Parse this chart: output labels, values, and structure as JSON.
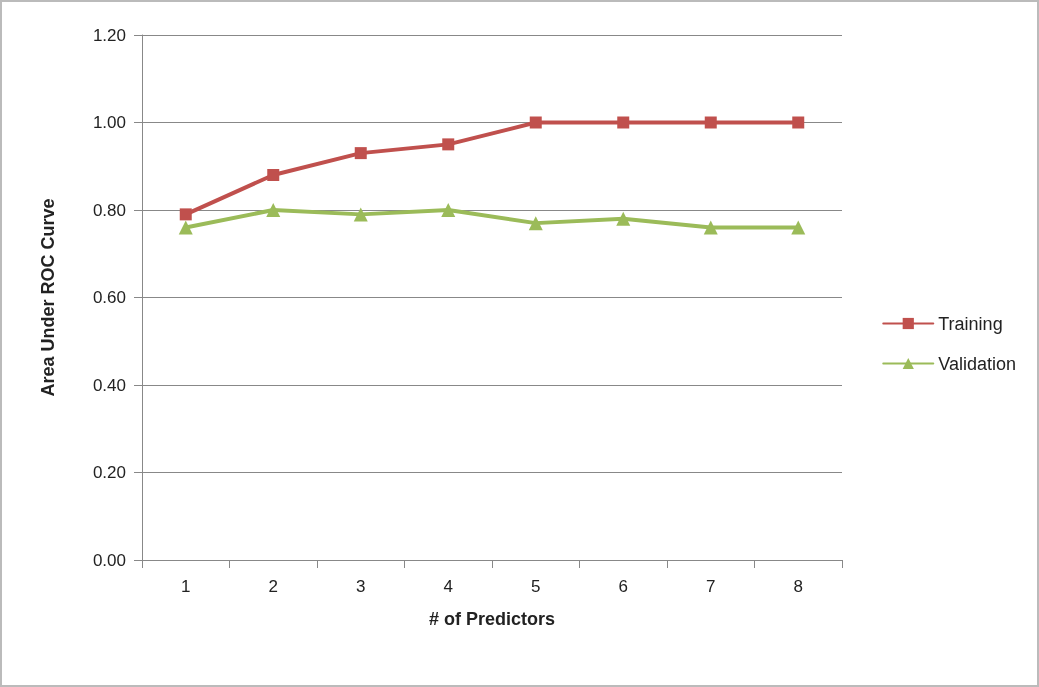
{
  "chart_data": {
    "type": "line",
    "xlabel": "# of Predictors",
    "ylabel": "Area Under ROC Curve",
    "categories": [
      "1",
      "2",
      "3",
      "4",
      "5",
      "6",
      "7",
      "8"
    ],
    "series": [
      {
        "name": "Training",
        "color": "#c0504d",
        "marker": "square",
        "values": [
          0.79,
          0.88,
          0.93,
          0.95,
          1.0,
          1.0,
          1.0,
          1.0
        ]
      },
      {
        "name": "Validation",
        "color": "#9bbb59",
        "marker": "triangle",
        "values": [
          0.76,
          0.8,
          0.79,
          0.8,
          0.77,
          0.78,
          0.76,
          0.76
        ]
      }
    ],
    "ylim": [
      0,
      1.2
    ],
    "yticks": [
      {
        "value": 0,
        "label": "0.00"
      },
      {
        "value": 0.2,
        "label": "0.20"
      },
      {
        "value": 0.4,
        "label": "0.40"
      },
      {
        "value": 0.6,
        "label": "0.60"
      },
      {
        "value": 0.8,
        "label": "0.80"
      },
      {
        "value": 1.0,
        "label": "1.00"
      },
      {
        "value": 1.2,
        "label": "1.20"
      }
    ],
    "grid": "y",
    "legend": "right",
    "line_style": "solid"
  }
}
